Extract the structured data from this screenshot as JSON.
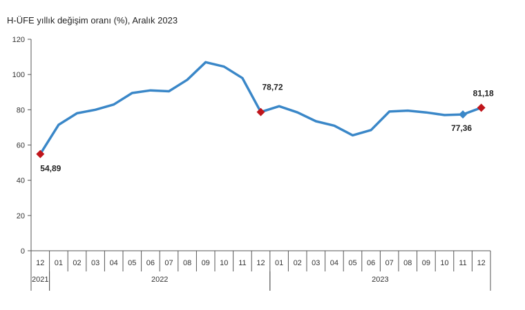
{
  "chart_data": {
    "type": "line",
    "title": "H-ÜFE yıllık değişim oranı (%), Aralık 2023",
    "xlabel": "",
    "ylabel": "",
    "ylim": [
      0,
      120
    ],
    "yticks": [
      0,
      20,
      40,
      60,
      80,
      100,
      120
    ],
    "grid": false,
    "categories": [
      "12",
      "01",
      "02",
      "03",
      "04",
      "05",
      "06",
      "07",
      "08",
      "09",
      "10",
      "11",
      "12",
      "01",
      "02",
      "03",
      "04",
      "05",
      "06",
      "07",
      "08",
      "09",
      "10",
      "11",
      "12"
    ],
    "years": [
      {
        "label": "2021",
        "start": 0,
        "end": 0
      },
      {
        "label": "2022",
        "start": 1,
        "end": 12
      },
      {
        "label": "2023",
        "start": 13,
        "end": 24
      }
    ],
    "series": [
      {
        "color": "#3a87c8",
        "values": [
          54.89,
          71.5,
          78.0,
          80.0,
          83.0,
          89.5,
          91.0,
          90.5,
          97.0,
          107.0,
          104.5,
          98.0,
          78.72,
          82.0,
          78.5,
          73.5,
          71.0,
          65.5,
          68.5,
          79.0,
          79.5,
          78.5,
          77.0,
          77.36,
          81.18
        ]
      }
    ],
    "highlight_color": "#c0151b",
    "annotations": [
      {
        "index": 0,
        "label": "54,89",
        "marker": "diamond-red"
      },
      {
        "index": 12,
        "label": "78,72",
        "marker": "diamond-red"
      },
      {
        "index": 23,
        "label": "77,36",
        "marker": "diamond-blue"
      },
      {
        "index": 24,
        "label": "81,18",
        "marker": "diamond-red"
      }
    ]
  }
}
